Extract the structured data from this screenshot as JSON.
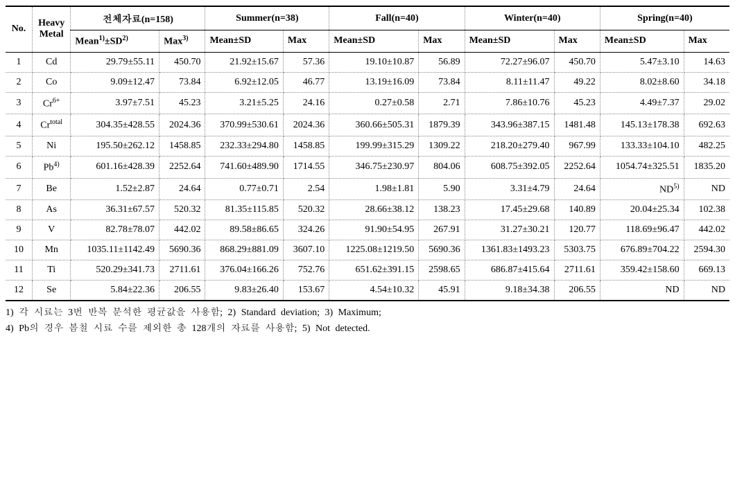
{
  "columns": {
    "no": "No.",
    "metal": "Heavy\nMetal",
    "groups": [
      {
        "title": "전체자료(n=158)",
        "mean_head": "Mean<sup>1)</sup>±SD<sup>2)</sup>",
        "max_head": "Max<sup>3)</sup>"
      },
      {
        "title": "Summer(n=38)",
        "mean_head": "Mean±SD",
        "max_head": "Max"
      },
      {
        "title": "Fall(n=40)",
        "mean_head": "Mean±SD",
        "max_head": "Max"
      },
      {
        "title": "Winter(n=40)",
        "mean_head": "Mean±SD",
        "max_head": "Max"
      },
      {
        "title": "Spring(n=40)",
        "mean_head": "Mean±SD",
        "max_head": "Max"
      }
    ]
  },
  "rows": [
    {
      "no": 1,
      "metal": "Cd",
      "vals": [
        {
          "mean": "29.79±55.11",
          "max": "450.70"
        },
        {
          "mean": "21.92±15.67",
          "max": "57.36"
        },
        {
          "mean": "19.10±10.87",
          "max": "56.89"
        },
        {
          "mean": "72.27±96.07",
          "max": "450.70"
        },
        {
          "mean": "5.47±3.10",
          "max": "14.63"
        }
      ]
    },
    {
      "no": 2,
      "metal": "Co",
      "vals": [
        {
          "mean": "9.09±12.47",
          "max": "73.84"
        },
        {
          "mean": "6.92±12.05",
          "max": "46.77"
        },
        {
          "mean": "13.19±16.09",
          "max": "73.84"
        },
        {
          "mean": "8.11±11.47",
          "max": "49.22"
        },
        {
          "mean": "8.02±8.60",
          "max": "34.18"
        }
      ]
    },
    {
      "no": 3,
      "metal": "Cr<sup>6+</sup>",
      "vals": [
        {
          "mean": "3.97±7.51",
          "max": "45.23"
        },
        {
          "mean": "3.21±5.25",
          "max": "24.16"
        },
        {
          "mean": "0.27±0.58",
          "max": "2.71"
        },
        {
          "mean": "7.86±10.76",
          "max": "45.23"
        },
        {
          "mean": "4.49±7.37",
          "max": "29.02"
        }
      ]
    },
    {
      "no": 4,
      "metal": "Cr<sup>total</sup>",
      "vals": [
        {
          "mean": "304.35±428.55",
          "max": "2024.36"
        },
        {
          "mean": "370.99±530.61",
          "max": "2024.36"
        },
        {
          "mean": "360.66±505.31",
          "max": "1879.39"
        },
        {
          "mean": "343.96±387.15",
          "max": "1481.48"
        },
        {
          "mean": "145.13±178.38",
          "max": "692.63"
        }
      ]
    },
    {
      "no": 5,
      "metal": "Ni",
      "vals": [
        {
          "mean": "195.50±262.12",
          "max": "1458.85"
        },
        {
          "mean": "232.33±294.80",
          "max": "1458.85"
        },
        {
          "mean": "199.99±315.29",
          "max": "1309.22"
        },
        {
          "mean": "218.20±279.40",
          "max": "967.99"
        },
        {
          "mean": "133.33±104.10",
          "max": "482.25"
        }
      ]
    },
    {
      "no": 6,
      "metal": "Pb<sup>4)</sup>",
      "vals": [
        {
          "mean": "601.16±428.39",
          "max": "2252.64"
        },
        {
          "mean": "741.60±489.90",
          "max": "1714.55"
        },
        {
          "mean": "346.75±230.97",
          "max": "804.06"
        },
        {
          "mean": "608.75±392.05",
          "max": "2252.64"
        },
        {
          "mean": "1054.74±325.51",
          "max": "1835.20"
        }
      ]
    },
    {
      "no": 7,
      "metal": "Be",
      "vals": [
        {
          "mean": "1.52±2.87",
          "max": "24.64"
        },
        {
          "mean": "0.77±0.71",
          "max": "2.54"
        },
        {
          "mean": "1.98±1.81",
          "max": "5.90"
        },
        {
          "mean": "3.31±4.79",
          "max": "24.64"
        },
        {
          "mean": "ND<sup>5)</sup>",
          "max": "ND"
        }
      ]
    },
    {
      "no": 8,
      "metal": "As",
      "vals": [
        {
          "mean": "36.31±67.57",
          "max": "520.32"
        },
        {
          "mean": "81.35±115.85",
          "max": "520.32"
        },
        {
          "mean": "28.66±38.12",
          "max": "138.23"
        },
        {
          "mean": "17.45±29.68",
          "max": "140.89"
        },
        {
          "mean": "20.04±25.34",
          "max": "102.38"
        }
      ]
    },
    {
      "no": 9,
      "metal": "V",
      "vals": [
        {
          "mean": "82.78±78.07",
          "max": "442.02"
        },
        {
          "mean": "89.58±86.65",
          "max": "324.26"
        },
        {
          "mean": "91.90±54.95",
          "max": "267.91"
        },
        {
          "mean": "31.27±30.21",
          "max": "120.77"
        },
        {
          "mean": "118.69±96.47",
          "max": "442.02"
        }
      ]
    },
    {
      "no": 10,
      "metal": "Mn",
      "vals": [
        {
          "mean": "1035.11±1142.49",
          "max": "5690.36"
        },
        {
          "mean": "868.29±881.09",
          "max": "3607.10"
        },
        {
          "mean": "1225.08±1219.50",
          "max": "5690.36"
        },
        {
          "mean": "1361.83±1493.23",
          "max": "5303.75"
        },
        {
          "mean": "676.89±704.22",
          "max": "2594.30"
        }
      ]
    },
    {
      "no": 11,
      "metal": "Ti",
      "vals": [
        {
          "mean": "520.29±341.73",
          "max": "2711.61"
        },
        {
          "mean": "376.04±166.26",
          "max": "752.76"
        },
        {
          "mean": "651.62±391.15",
          "max": "2598.65"
        },
        {
          "mean": "686.87±415.64",
          "max": "2711.61"
        },
        {
          "mean": "359.42±158.60",
          "max": "669.13"
        }
      ]
    },
    {
      "no": 12,
      "metal": "Se",
      "vals": [
        {
          "mean": "5.84±22.36",
          "max": "206.55"
        },
        {
          "mean": "9.83±26.40",
          "max": "153.67"
        },
        {
          "mean": "4.54±10.32",
          "max": "45.91"
        },
        {
          "mean": "9.18±34.38",
          "max": "206.55"
        },
        {
          "mean": "ND",
          "max": "ND"
        }
      ]
    }
  ],
  "notes": [
    "1) 각 시료는 3번 반복 분석한 평균값을 사용함; 2) Standard deviation; 3) Maximum;",
    "4) Pb의 경우 봄철 시료 수를 제외한 총 128개의 자료를 사용함; 5) Not detected."
  ]
}
